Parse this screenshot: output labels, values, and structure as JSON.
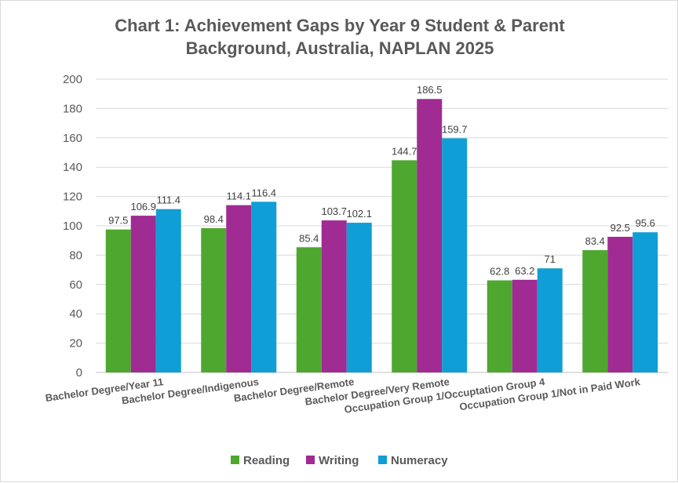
{
  "chart_data": {
    "type": "bar",
    "title_lines": [
      "Chart 1: Achievement Gaps by Year 9 Student & Parent",
      "Background, Australia, NAPLAN 2025"
    ],
    "categories": [
      "Bachelor Degree/Year 11",
      "Bachelor Degree/Indigenous",
      "Bachelor Degree/Remote",
      "Bachelor Degree/Very Remote",
      "Occupation Group 1/Occuptation Group 4",
      "Occupation Group 1/Not in Paid Work"
    ],
    "series": [
      {
        "name": "Reading",
        "color": "#4ea72e",
        "values": [
          97.5,
          98.4,
          85.4,
          144.7,
          62.8,
          83.4
        ],
        "labels": [
          "97.5",
          "98.4",
          "85.4",
          "144.7",
          "62.8",
          "83.4"
        ]
      },
      {
        "name": "Writing",
        "color": "#a02b93",
        "values": [
          106.9,
          114.1,
          103.7,
          186.5,
          63.2,
          92.5
        ],
        "labels": [
          "106.9",
          "114.1",
          "103.7",
          "186.5",
          "63.2",
          "92.5"
        ]
      },
      {
        "name": "Numeracy",
        "color": "#0f9ed5",
        "values": [
          111.4,
          116.4,
          102.1,
          159.7,
          71,
          95.6
        ],
        "labels": [
          "111.4",
          "116.4",
          "102.1",
          "159.7",
          "71",
          "95.6"
        ]
      }
    ],
    "ylim": [
      0,
      200
    ],
    "yticks": [
      0,
      20,
      40,
      60,
      80,
      100,
      120,
      140,
      160,
      180,
      200
    ],
    "ytick_labels": [
      "0",
      "20",
      "40",
      "60",
      "80",
      "100",
      "120",
      "140",
      "160",
      "180",
      "200"
    ],
    "xlabel": "",
    "ylabel": "",
    "grid": true,
    "legend_position": "bottom"
  }
}
